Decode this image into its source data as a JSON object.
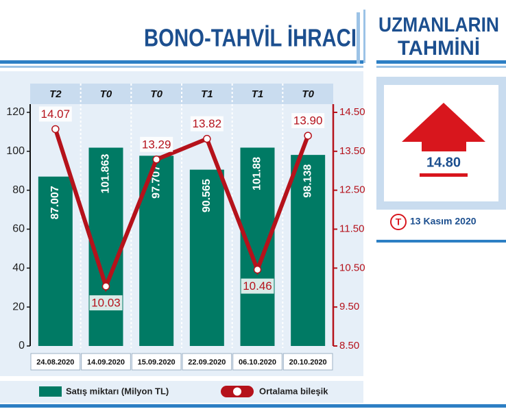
{
  "chart_data": {
    "type": "bar",
    "title": "BONO-TAHVİL İHRACI",
    "categories": [
      "24.08.2020",
      "14.09.2020",
      "15.09.2020",
      "22.09.2020",
      "06.10.2020",
      "20.10.2020"
    ],
    "header_labels": [
      "T2",
      "T0",
      "T0",
      "T1",
      "T1",
      "T0"
    ],
    "series": [
      {
        "name": "Satış miktarı (Milyon TL)",
        "color": "#007a64",
        "values": [
          87.007,
          101.863,
          97.707,
          90.565,
          101.88,
          98.138
        ]
      },
      {
        "name": "Ortalama bileşik",
        "color": "#b5121b",
        "type": "line",
        "axis": "y2",
        "values": [
          14.07,
          10.03,
          13.29,
          13.82,
          10.46,
          13.9
        ],
        "value_labels": [
          "14.07",
          "10.03",
          "13.29",
          "13.82",
          "10.46",
          "13.90"
        ]
      }
    ],
    "ylim": [
      0,
      120
    ],
    "yticks": [
      0,
      20,
      40,
      60,
      80,
      100,
      120
    ],
    "y2lim": [
      8.5,
      14.5
    ],
    "y2ticks": [
      {
        "value": 8.5,
        "label": "8.50"
      },
      {
        "value": 9.5,
        "label": "9.50"
      },
      {
        "value": 10.5,
        "label": "10.50"
      },
      {
        "value": 11.5,
        "label": "11.50"
      },
      {
        "value": 12.5,
        "label": "12.50"
      },
      {
        "value": 13.5,
        "label": "13.50"
      },
      {
        "value": 14.5,
        "label": "14.50"
      }
    ]
  },
  "panel": {
    "title_line1": "UZMANLARIN",
    "title_line2": "TAHMİNİ",
    "forecast": "14.80",
    "logo": "T",
    "date": "13 Kasım 2020"
  }
}
